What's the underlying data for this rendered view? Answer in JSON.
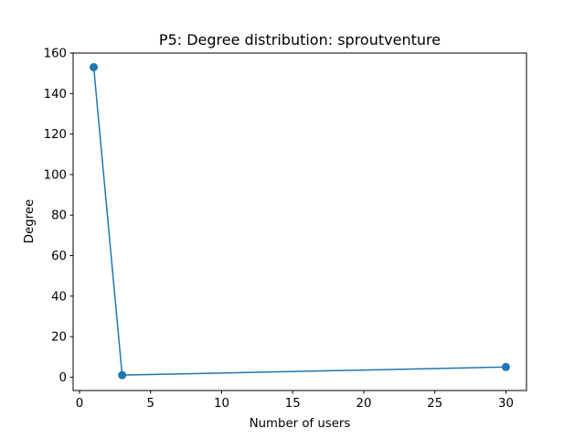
{
  "chart_data": {
    "type": "line",
    "title": "P5: Degree distribution: sproutventure",
    "xlabel": "Number of users",
    "ylabel": "Degree",
    "xlim": [
      -0.45,
      31.45
    ],
    "ylim": [
      -6.6,
      160
    ],
    "xticks": [
      0,
      5,
      10,
      15,
      20,
      25,
      30
    ],
    "yticks": [
      0,
      20,
      40,
      60,
      80,
      100,
      120,
      140,
      160
    ],
    "grid": false,
    "series": [
      {
        "x": [
          1,
          3,
          30
        ],
        "y": [
          153,
          1,
          5
        ],
        "color": "#1f77b4",
        "marker": "circle"
      }
    ]
  }
}
